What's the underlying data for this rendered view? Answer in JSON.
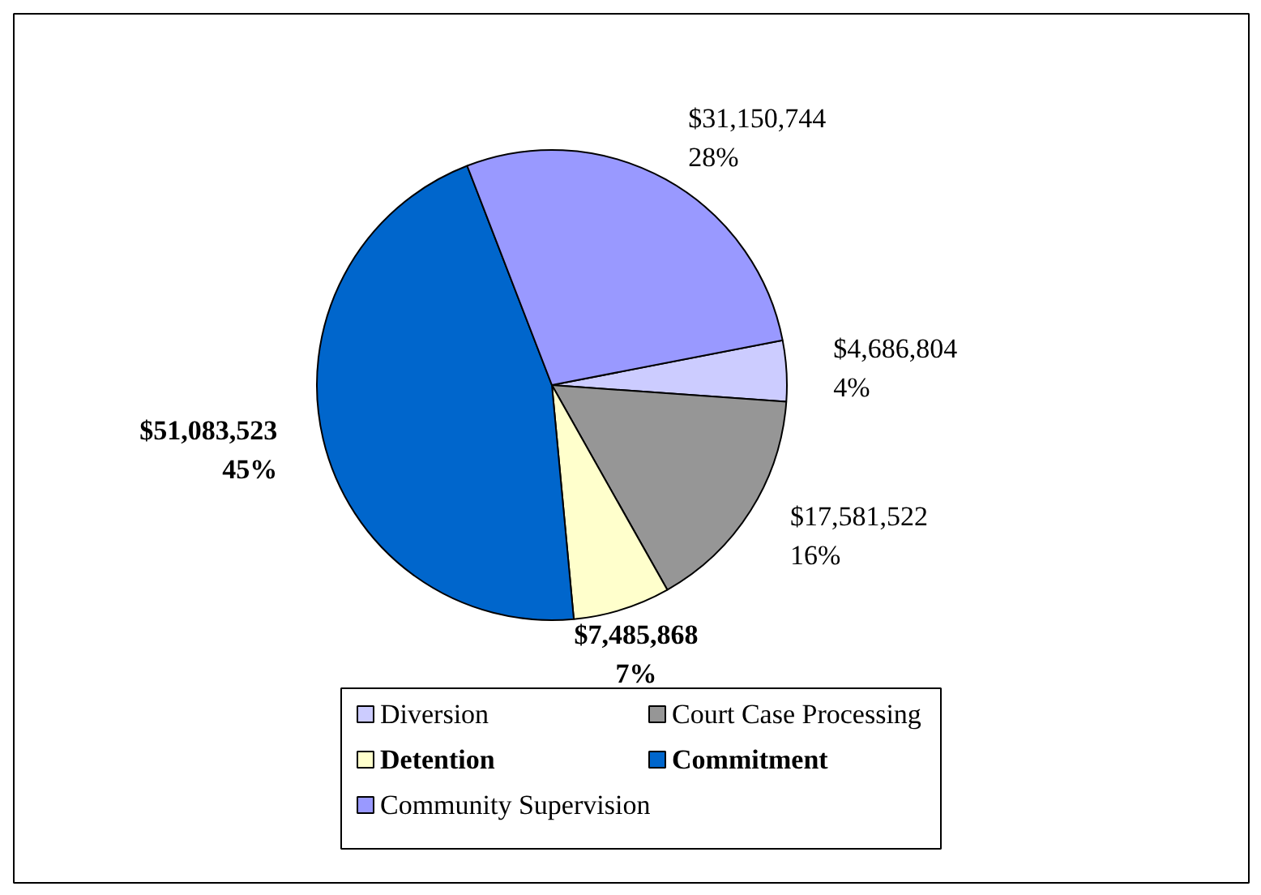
{
  "chart_data": {
    "type": "pie",
    "categories": [
      "Diversion",
      "Court Case Processing",
      "Detention",
      "Commitment",
      "Community Supervision"
    ],
    "values": [
      4686804,
      17581522,
      7485868,
      51083523,
      31150744
    ],
    "colors": [
      "#ccccff",
      "#969696",
      "#ffffcc",
      "#0066cc",
      "#9999ff"
    ],
    "value_labels": [
      "$4,686,804\n4%",
      "$17,581,522\n16%",
      "$7,485,868\n7%",
      "$51,083,523\n45%",
      "$31,150,744\n28%"
    ],
    "legend": "bottom"
  }
}
